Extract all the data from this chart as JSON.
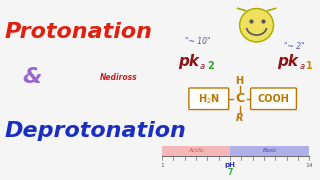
{
  "bg_color": "#f5f5f5",
  "protonation_text": "Protonation",
  "ampersand_text": "&",
  "deprotonation_text": "Deprotonation",
  "protonation_color": "#e02010",
  "ampersand_color": "#9966cc",
  "deprotonation_color": "#1a2fbf",
  "pka_color": "#8b1515",
  "pka2_num_color": "#22aa22",
  "pka1_num_color": "#cc8800",
  "approx_color": "#5555aa",
  "struct_color": "#bb7700",
  "struct_box_color": "#bb7700",
  "mediross_color": "#cc2222",
  "acid_color": "#f5b8b8",
  "basic_color": "#b0b0e8",
  "acid_label": "Acidic",
  "basic_label": "Basic",
  "ph_label": "pH",
  "ph_label_color": "#3333cc",
  "ph_neutral": "7",
  "ph_neutral_color": "#33aa33",
  "tick_color": "#666666",
  "smiley_color": "#f0e060",
  "smiley_border": "#aaaa00",
  "smiley_face": "#555555"
}
